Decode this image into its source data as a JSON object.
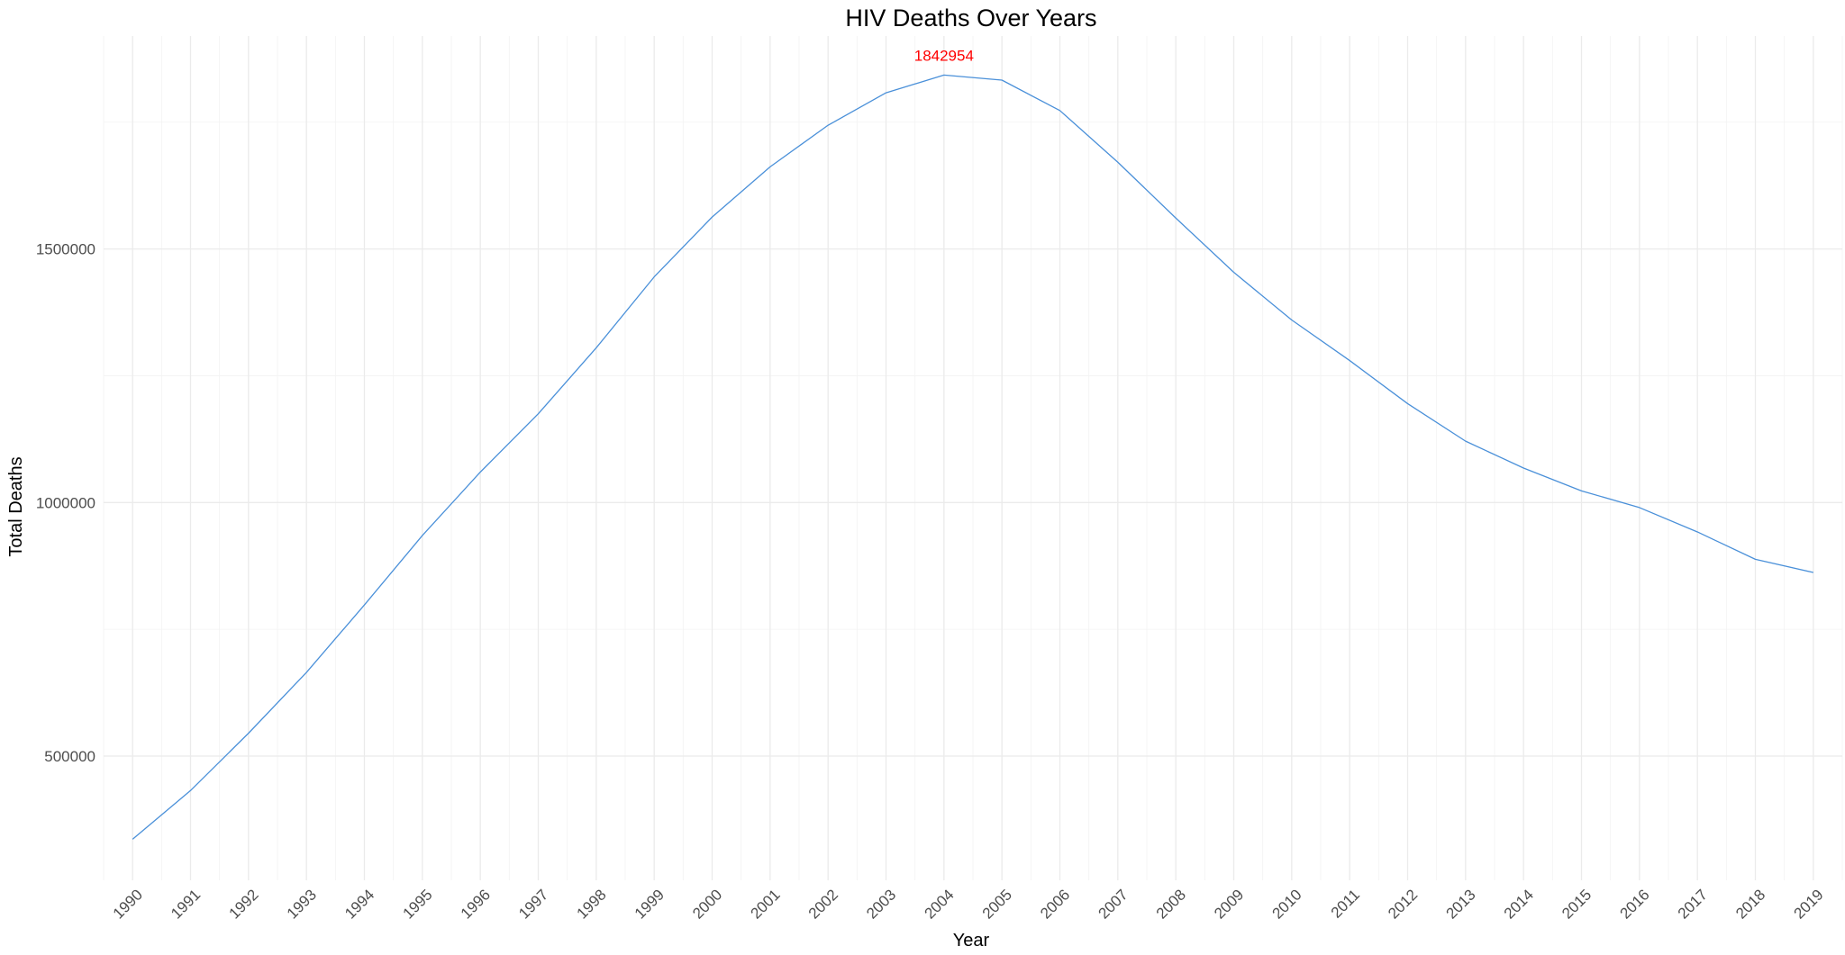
{
  "chart_data": {
    "type": "line",
    "title": "HIV Deaths Over Years",
    "xlabel": "Year",
    "ylabel": "Total Deaths",
    "x": [
      1990,
      1991,
      1992,
      1993,
      1994,
      1995,
      1996,
      1997,
      1998,
      1999,
      2000,
      2001,
      2002,
      2003,
      2004,
      2005,
      2006,
      2007,
      2008,
      2009,
      2010,
      2011,
      2012,
      2013,
      2014,
      2015,
      2016,
      2017,
      2018,
      2019
    ],
    "x_tick_labels": [
      "1990",
      "1991",
      "1992",
      "1993",
      "1994",
      "1995",
      "1996",
      "1997",
      "1998",
      "1999",
      "2000",
      "2001",
      "2002",
      "2003",
      "2004",
      "2005",
      "2006",
      "2007",
      "2008",
      "2009",
      "2010",
      "2011",
      "2012",
      "2013",
      "2014",
      "2015",
      "2016",
      "2017",
      "2018",
      "2019"
    ],
    "series": [
      {
        "values": [
          336000,
          432000,
          545000,
          665000,
          798000,
          935000,
          1060000,
          1175000,
          1305000,
          1445000,
          1563000,
          1662000,
          1744000,
          1808000,
          1842954,
          1833000,
          1773000,
          1671000,
          1561000,
          1454000,
          1360000,
          1280000,
          1195000,
          1121000,
          1068000,
          1023000,
          990000,
          942000,
          888000,
          862000
        ]
      }
    ],
    "y_ticks": [
      500000,
      1000000,
      1500000
    ],
    "y_tick_labels": [
      "500000",
      "1000000",
      "1500000"
    ],
    "ylim": [
      255000,
      1920000
    ],
    "xlim": [
      1989.5,
      2019.5
    ],
    "grid": true,
    "legend": "none",
    "annotation": {
      "text": "1842954",
      "x": 2004,
      "y": 1842954,
      "color": "#ff0000"
    },
    "line_color": "#4a90d9"
  }
}
